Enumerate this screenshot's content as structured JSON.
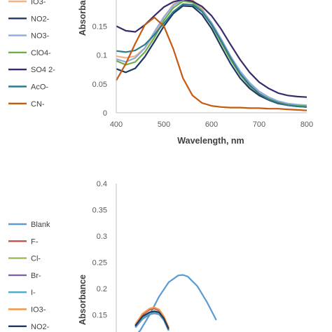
{
  "chart_data": [
    {
      "type": "line",
      "xlabel": "Wavelength, nm",
      "ylabel": "Absorbance",
      "xlim": [
        400,
        800
      ],
      "ylim": [
        0,
        0.2
      ],
      "x_ticks": [
        "400",
        "500",
        "600",
        "700",
        "800"
      ],
      "y_ticks": [
        "0",
        "0.05",
        "0.1",
        "0.15"
      ],
      "legend_position": "left",
      "legend_visible": [
        "IO3-",
        "NO2-",
        "NO3-",
        "ClO4-",
        "SO4 2-",
        "AcO-",
        "CN-"
      ],
      "series": [
        {
          "name": "IO3-",
          "color": "#f4b183",
          "x": [
            400,
            420,
            440,
            460,
            480,
            500,
            520,
            540,
            560,
            580,
            600,
            620,
            640,
            660,
            680,
            700,
            720,
            740,
            760,
            780,
            800
          ],
          "y": [
            0.098,
            0.095,
            0.098,
            0.112,
            0.135,
            0.165,
            0.188,
            0.198,
            0.195,
            0.18,
            0.155,
            0.125,
            0.095,
            0.07,
            0.05,
            0.035,
            0.025,
            0.018,
            0.014,
            0.012,
            0.012
          ]
        },
        {
          "name": "NO2-",
          "color": "#1f3864",
          "x": [
            400,
            420,
            440,
            460,
            480,
            500,
            520,
            540,
            560,
            580,
            600,
            620,
            640,
            660,
            680,
            700,
            720,
            740,
            760,
            780,
            800
          ],
          "y": [
            0.076,
            0.07,
            0.077,
            0.097,
            0.123,
            0.15,
            0.172,
            0.185,
            0.184,
            0.17,
            0.146,
            0.115,
            0.085,
            0.06,
            0.042,
            0.03,
            0.022,
            0.016,
            0.013,
            0.011,
            0.01
          ]
        },
        {
          "name": "NO3-",
          "color": "#8faadc",
          "x": [
            400,
            420,
            440,
            460,
            480,
            500,
            520,
            540,
            560,
            580,
            600,
            620,
            640,
            660,
            680,
            700,
            720,
            740,
            760,
            780,
            800
          ],
          "y": [
            0.093,
            0.088,
            0.095,
            0.112,
            0.14,
            0.166,
            0.186,
            0.196,
            0.192,
            0.178,
            0.156,
            0.128,
            0.098,
            0.072,
            0.052,
            0.037,
            0.027,
            0.02,
            0.016,
            0.014,
            0.013
          ]
        },
        {
          "name": "ClO4-",
          "color": "#70ad47",
          "x": [
            400,
            420,
            440,
            460,
            480,
            500,
            520,
            540,
            560,
            580,
            600,
            620,
            640,
            660,
            680,
            700,
            720,
            740,
            760,
            780,
            800
          ],
          "y": [
            0.09,
            0.083,
            0.088,
            0.105,
            0.13,
            0.16,
            0.182,
            0.193,
            0.191,
            0.176,
            0.152,
            0.122,
            0.092,
            0.066,
            0.046,
            0.033,
            0.024,
            0.018,
            0.014,
            0.012,
            0.011
          ]
        },
        {
          "name": "SO4 2-",
          "color": "#3b2a6a",
          "x": [
            400,
            420,
            440,
            460,
            480,
            500,
            520,
            540,
            560,
            580,
            600,
            620,
            640,
            660,
            680,
            700,
            720,
            740,
            760,
            780,
            800
          ],
          "y": [
            0.15,
            0.142,
            0.14,
            0.152,
            0.168,
            0.183,
            0.192,
            0.196,
            0.193,
            0.184,
            0.168,
            0.145,
            0.118,
            0.092,
            0.07,
            0.053,
            0.042,
            0.034,
            0.03,
            0.028,
            0.027
          ]
        },
        {
          "name": "AcO-",
          "color": "#2e7b8c",
          "x": [
            400,
            420,
            440,
            460,
            480,
            500,
            520,
            540,
            560,
            580,
            600,
            620,
            640,
            660,
            680,
            700,
            720,
            740,
            760,
            780,
            800
          ],
          "y": [
            0.107,
            0.105,
            0.108,
            0.118,
            0.135,
            0.155,
            0.175,
            0.188,
            0.187,
            0.175,
            0.153,
            0.125,
            0.095,
            0.068,
            0.048,
            0.033,
            0.023,
            0.017,
            0.013,
            0.011,
            0.01
          ]
        },
        {
          "name": "CN-",
          "color": "#c55a11",
          "x": [
            400,
            420,
            440,
            460,
            480,
            500,
            520,
            540,
            560,
            580,
            600,
            620,
            640,
            660,
            680,
            700,
            720,
            740,
            760,
            780,
            800
          ],
          "y": [
            0.056,
            0.085,
            0.12,
            0.152,
            0.165,
            0.15,
            0.11,
            0.06,
            0.03,
            0.017,
            0.012,
            0.01,
            0.009,
            0.009,
            0.008,
            0.008,
            0.007,
            0.007,
            0.006,
            0.005,
            0.004
          ]
        }
      ]
    },
    {
      "type": "line",
      "xlabel": "",
      "ylabel": "Absorbance",
      "xlim": [
        400,
        800
      ],
      "ylim": [
        0,
        0.4
      ],
      "y_ticks": [
        "0.15",
        "0.2",
        "0.25",
        "0.3",
        "0.35",
        "0.4"
      ],
      "legend_position": "left",
      "legend_visible": [
        "Blank",
        "F-",
        "Cl-",
        "Br-",
        "I-",
        "IO3-",
        "NO2-"
      ],
      "series": [
        {
          "name": "Blank",
          "color": "#5b9bd5",
          "x": [
            430,
            450,
            470,
            490,
            510,
            530,
            540,
            550,
            570,
            590,
            610
          ],
          "y": [
            0.1,
            0.12,
            0.15,
            0.185,
            0.212,
            0.225,
            0.226,
            0.223,
            0.205,
            0.175,
            0.14
          ]
        },
        {
          "name": "F-",
          "color": "#c0504d",
          "x": [
            440,
            455,
            470,
            480,
            490,
            500,
            510
          ],
          "y": [
            0.13,
            0.15,
            0.16,
            0.162,
            0.158,
            0.145,
            0.125
          ]
        },
        {
          "name": "Cl-",
          "color": "#9bbb59",
          "x": [
            440,
            455,
            470,
            480,
            490,
            500,
            510
          ],
          "y": [
            0.128,
            0.145,
            0.153,
            0.156,
            0.154,
            0.142,
            0.122
          ]
        },
        {
          "name": "Br-",
          "color": "#8064a2",
          "x": [
            440,
            455,
            470,
            480,
            490,
            500,
            510
          ],
          "y": [
            0.126,
            0.142,
            0.151,
            0.153,
            0.151,
            0.14,
            0.12
          ]
        },
        {
          "name": "I-",
          "color": "#4bacc6",
          "x": [
            440,
            455,
            470,
            480,
            490,
            500,
            510
          ],
          "y": [
            0.127,
            0.143,
            0.152,
            0.154,
            0.152,
            0.141,
            0.121
          ]
        },
        {
          "name": "IO3-",
          "color": "#f79646",
          "x": [
            440,
            455,
            470,
            480,
            490,
            500,
            510
          ],
          "y": [
            0.132,
            0.152,
            0.162,
            0.164,
            0.16,
            0.147,
            0.126
          ]
        },
        {
          "name": "NO2-",
          "color": "#1f3864",
          "x": [
            440,
            455,
            470,
            480,
            490,
            500,
            510
          ],
          "y": [
            0.129,
            0.147,
            0.155,
            0.157,
            0.155,
            0.143,
            0.123
          ]
        }
      ]
    }
  ]
}
